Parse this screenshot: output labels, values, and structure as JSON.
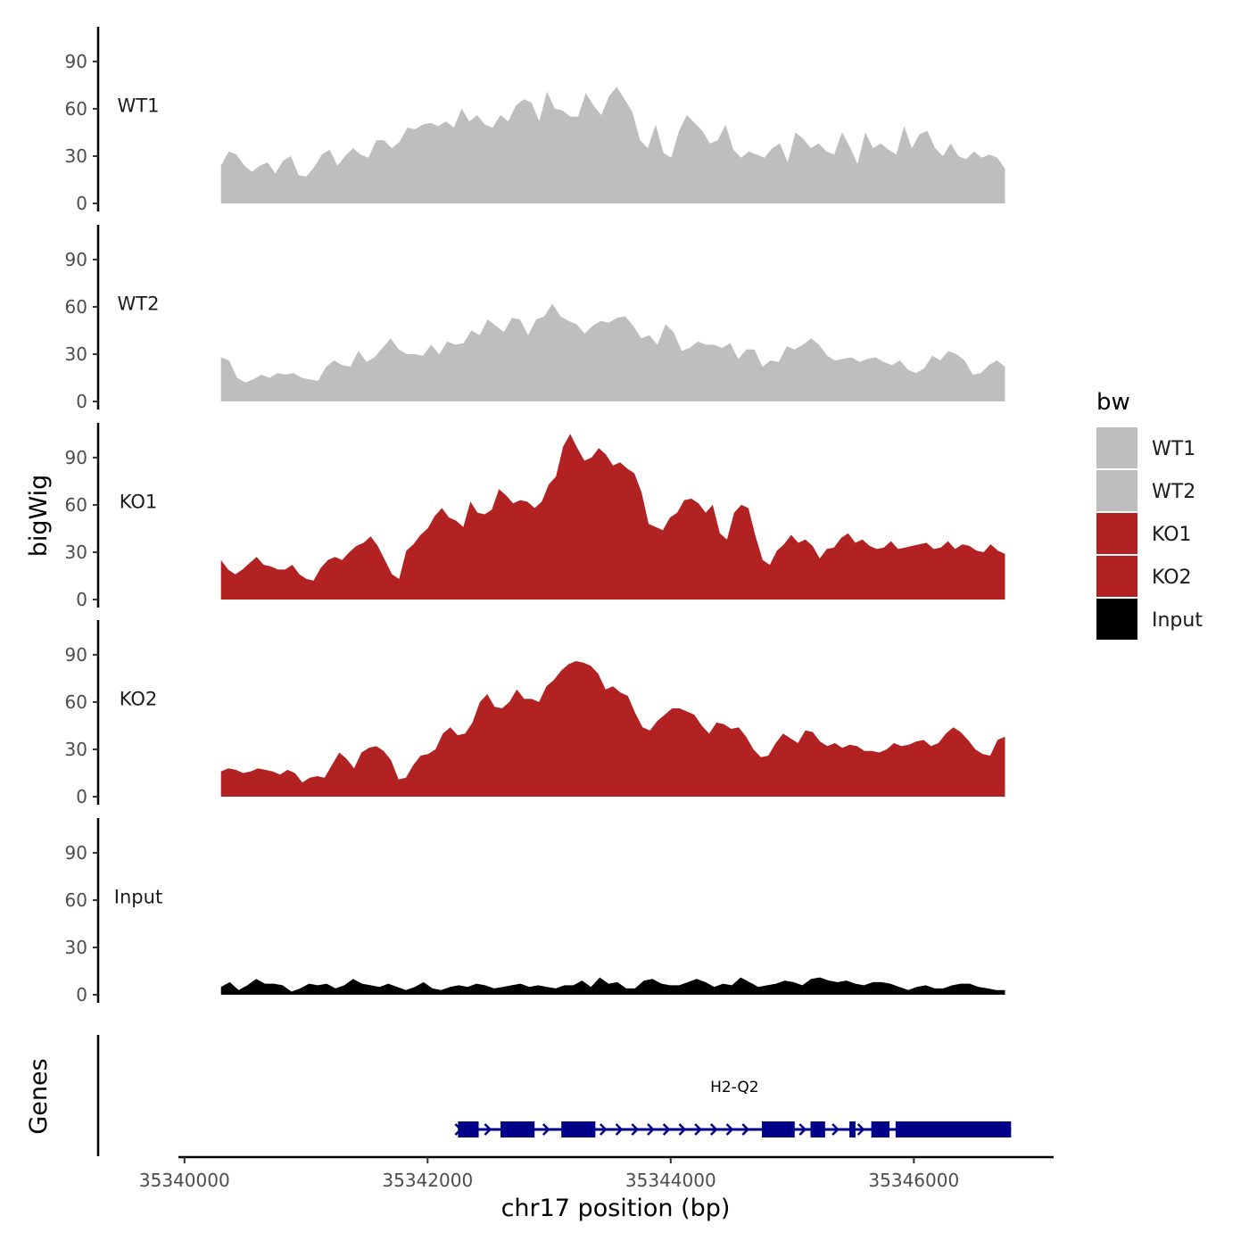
{
  "chart_data": {
    "type": "area",
    "title": "",
    "xlabel": "chr17 position (bp)",
    "ylabel": "bigWig",
    "genes_label": "Genes",
    "xlim": [
      35339950,
      35347150
    ],
    "x_ticks": [
      35340000,
      35342000,
      35344000,
      35346000
    ],
    "x_tick_labels": [
      "35340000",
      "35342000",
      "35344000",
      "35346000"
    ],
    "ylim": [
      0,
      112
    ],
    "y_ticks": [
      0,
      30,
      60,
      90
    ],
    "y_tick_labels": [
      "0",
      "30",
      "60",
      "90"
    ],
    "region": [
      35340300,
      35346750
    ],
    "tracks": [
      {
        "name": "WT1",
        "color": "#bebebe",
        "x_start": 35340300,
        "x_end": 35346750,
        "values": [
          24,
          33,
          31,
          24,
          20,
          24,
          26,
          19,
          27,
          30,
          18,
          17,
          23,
          31,
          34,
          24,
          30,
          35,
          31,
          29,
          40,
          40,
          35,
          39,
          48,
          47,
          50,
          51,
          49,
          52,
          48,
          60,
          52,
          56,
          50,
          48,
          56,
          52,
          62,
          66,
          64,
          52,
          71,
          60,
          59,
          55,
          55,
          70,
          62,
          56,
          68,
          74,
          66,
          58,
          40,
          35,
          50,
          32,
          29,
          46,
          56,
          51,
          46,
          38,
          40,
          50,
          34,
          29,
          33,
          31,
          29,
          35,
          38,
          26,
          45,
          41,
          35,
          38,
          33,
          31,
          45,
          36,
          25,
          45,
          35,
          38,
          34,
          31,
          49,
          35,
          44,
          46,
          35,
          30,
          38,
          30,
          28,
          33,
          29,
          31,
          29,
          22
        ]
      },
      {
        "name": "WT2",
        "color": "#bebebe",
        "x_start": 35340300,
        "x_end": 35346750,
        "values": [
          28,
          26,
          15,
          12,
          14,
          17,
          15,
          18,
          17,
          18,
          15,
          14,
          13,
          22,
          26,
          23,
          22,
          32,
          25,
          28,
          34,
          40,
          33,
          30,
          30,
          29,
          36,
          30,
          38,
          36,
          37,
          45,
          42,
          52,
          48,
          44,
          53,
          52,
          42,
          52,
          54,
          62,
          54,
          51,
          49,
          43,
          48,
          51,
          50,
          53,
          54,
          48,
          40,
          42,
          36,
          49,
          44,
          32,
          34,
          38,
          36,
          36,
          34,
          37,
          27,
          33,
          33,
          22,
          26,
          25,
          35,
          33,
          36,
          40,
          36,
          29,
          26,
          27,
          28,
          25,
          27,
          28,
          25,
          23,
          26,
          20,
          18,
          21,
          29,
          26,
          32,
          30,
          26,
          17,
          18,
          23,
          26,
          22
        ]
      },
      {
        "name": "KO1",
        "color": "#b22222",
        "x_start": 35340300,
        "x_end": 35346750,
        "values": [
          25,
          19,
          16,
          19,
          23,
          27,
          22,
          21,
          19,
          19,
          22,
          16,
          13,
          12,
          20,
          25,
          27,
          25,
          30,
          34,
          36,
          40,
          34,
          25,
          16,
          13,
          31,
          35,
          41,
          45,
          53,
          58,
          52,
          50,
          46,
          62,
          55,
          54,
          57,
          70,
          66,
          61,
          63,
          62,
          58,
          62,
          73,
          78,
          97,
          105,
          96,
          88,
          90,
          96,
          92,
          85,
          87,
          83,
          80,
          68,
          48,
          46,
          44,
          52,
          55,
          63,
          64,
          61,
          55,
          60,
          42,
          38,
          55,
          60,
          58,
          40,
          25,
          22,
          31,
          35,
          41,
          36,
          38,
          34,
          26,
          32,
          33,
          39,
          42,
          36,
          38,
          34,
          32,
          33,
          37,
          32,
          33,
          34,
          35,
          36,
          32,
          33,
          37,
          32,
          35,
          34,
          31,
          30,
          35,
          31,
          29
        ]
      },
      {
        "name": "KO2",
        "color": "#b22222",
        "x_start": 35340300,
        "x_end": 35346750,
        "values": [
          16,
          18,
          17,
          15,
          16,
          18,
          17,
          16,
          14,
          17,
          15,
          9,
          12,
          13,
          12,
          20,
          28,
          24,
          18,
          28,
          31,
          32,
          29,
          23,
          11,
          12,
          20,
          26,
          27,
          30,
          40,
          44,
          39,
          40,
          47,
          60,
          65,
          57,
          56,
          60,
          68,
          62,
          62,
          60,
          70,
          74,
          80,
          84,
          86,
          85,
          83,
          78,
          68,
          70,
          66,
          64,
          53,
          44,
          42,
          48,
          52,
          56,
          56,
          54,
          52,
          45,
          40,
          47,
          46,
          43,
          44,
          38,
          30,
          25,
          26,
          34,
          40,
          37,
          34,
          42,
          41,
          35,
          32,
          34,
          31,
          33,
          32,
          29,
          29,
          28,
          30,
          34,
          32,
          33,
          35,
          36,
          32,
          34,
          40,
          44,
          41,
          36,
          30,
          27,
          26,
          36,
          38
        ]
      },
      {
        "name": "Input",
        "color": "#000000",
        "x_start": 35340300,
        "x_end": 35346750,
        "values": [
          5,
          8,
          3,
          6,
          10,
          7,
          7,
          6,
          2,
          4,
          7,
          6,
          7,
          4,
          6,
          10,
          7,
          6,
          5,
          7,
          5,
          3,
          5,
          8,
          4,
          3,
          5,
          6,
          5,
          7,
          6,
          4,
          5,
          6,
          7,
          5,
          6,
          5,
          4,
          6,
          6,
          9,
          5,
          11,
          7,
          8,
          4,
          4,
          9,
          10,
          7,
          6,
          6,
          8,
          10,
          8,
          5,
          7,
          6,
          11,
          8,
          5,
          6,
          7,
          9,
          8,
          6,
          10,
          11,
          9,
          8,
          9,
          7,
          6,
          8,
          8,
          7,
          5,
          3,
          5,
          6,
          4,
          4,
          6,
          7,
          7,
          5,
          4,
          3,
          3
        ]
      }
    ],
    "legend": {
      "title": "bw",
      "position": "right",
      "entries": [
        {
          "label": "WT1",
          "color": "#bebebe"
        },
        {
          "label": "WT2",
          "color": "#bebebe"
        },
        {
          "label": "KO1",
          "color": "#b22222"
        },
        {
          "label": "KO2",
          "color": "#b22222"
        },
        {
          "label": "Input",
          "color": "#000000"
        }
      ]
    },
    "gene": {
      "name": "H2-Q2",
      "color": "#00008b",
      "strand": "+",
      "start": 35342250,
      "end": 35346800,
      "exons": [
        [
          35342250,
          35342420
        ],
        [
          35342600,
          35342880
        ],
        [
          35343100,
          35343380
        ],
        [
          35344750,
          35345020
        ],
        [
          35345150,
          35345270
        ],
        [
          35345470,
          35345520
        ],
        [
          35345650,
          35345800
        ],
        [
          35345850,
          35346800
        ]
      ],
      "arrow_positions": [
        35342500,
        35342980,
        35343450,
        35343580,
        35343710,
        35343840,
        35343970,
        35344100,
        35344230,
        35344360,
        35344490,
        35344620,
        35345090,
        35345360,
        35345570
      ]
    }
  }
}
